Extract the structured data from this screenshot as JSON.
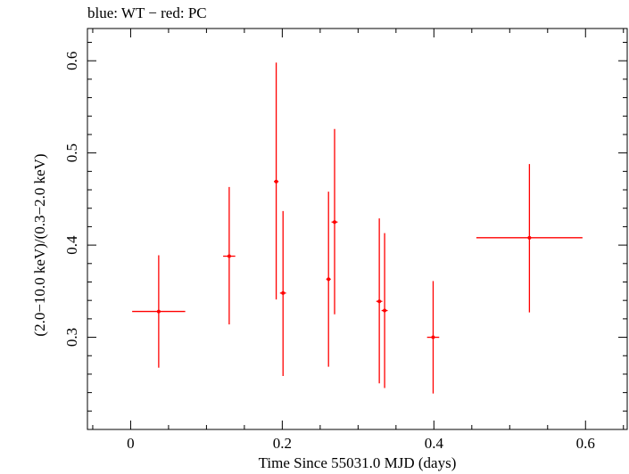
{
  "chart_data": {
    "type": "scatter",
    "title": "blue: WT − red: PC",
    "xlabel": "Time Since 55031.0 MJD (days)",
    "ylabel": "(2.0−10.0 keV)/(0.3−2.0 keV)",
    "xlim": [
      -0.057,
      0.655
    ],
    "ylim": [
      0.2,
      0.635
    ],
    "xticks": [
      "0",
      "0.2",
      "0.4",
      "0.6"
    ],
    "xtick_values": [
      0,
      0.2,
      0.4,
      0.6
    ],
    "yticks": [
      "0.3",
      "0.4",
      "0.5",
      "0.6"
    ],
    "ytick_values": [
      0.3,
      0.4,
      0.5,
      0.6
    ],
    "grid": false,
    "series": [
      {
        "name": "PC",
        "color": "#ff0000",
        "points": [
          {
            "x": 0.037,
            "y": 0.328,
            "xerr": 0.035,
            "ylo": 0.267,
            "yhi": 0.389
          },
          {
            "x": 0.13,
            "y": 0.388,
            "xerr": 0.008,
            "ylo": 0.314,
            "yhi": 0.463
          },
          {
            "x": 0.192,
            "y": 0.469,
            "xerr": 0.003,
            "ylo": 0.341,
            "yhi": 0.598
          },
          {
            "x": 0.201,
            "y": 0.348,
            "xerr": 0.004,
            "ylo": 0.258,
            "yhi": 0.437
          },
          {
            "x": 0.261,
            "y": 0.363,
            "xerr": 0.003,
            "ylo": 0.268,
            "yhi": 0.458
          },
          {
            "x": 0.269,
            "y": 0.425,
            "xerr": 0.004,
            "ylo": 0.325,
            "yhi": 0.526
          },
          {
            "x": 0.328,
            "y": 0.339,
            "xerr": 0.004,
            "ylo": 0.25,
            "yhi": 0.429
          },
          {
            "x": 0.335,
            "y": 0.329,
            "xerr": 0.004,
            "ylo": 0.245,
            "yhi": 0.413
          },
          {
            "x": 0.399,
            "y": 0.3,
            "xerr": 0.008,
            "ylo": 0.239,
            "yhi": 0.361
          },
          {
            "x": 0.526,
            "y": 0.408,
            "xerr": 0.07,
            "ylo": 0.327,
            "yhi": 0.488
          }
        ]
      }
    ]
  }
}
